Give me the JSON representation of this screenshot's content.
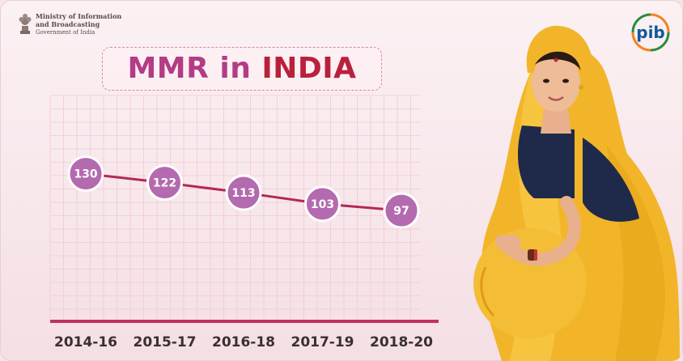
{
  "header": {
    "ministry_line1": "Ministry of Information",
    "ministry_line2": "and Broadcasting",
    "ministry_line3": "Government of India",
    "logo_text": "pib"
  },
  "title": {
    "part1": "MMR in ",
    "part2": "INDIA"
  },
  "colors": {
    "title_pink": "#b23c86",
    "title_red": "#b8213d",
    "line": "#b02a55",
    "marker": "#b46aae",
    "baseline": "#c2305f"
  },
  "chart_data": {
    "type": "line",
    "title": "MMR in INDIA",
    "xlabel": "",
    "ylabel": "",
    "categories": [
      "2014-16",
      "2015-17",
      "2016-18",
      "2017-19",
      "2018-20"
    ],
    "values": [
      130,
      122,
      113,
      103,
      97
    ],
    "data_labels": [
      "130",
      "122",
      "113",
      "103",
      "97"
    ],
    "grid": true,
    "legend": "none",
    "ylim": [
      0,
      200
    ]
  }
}
